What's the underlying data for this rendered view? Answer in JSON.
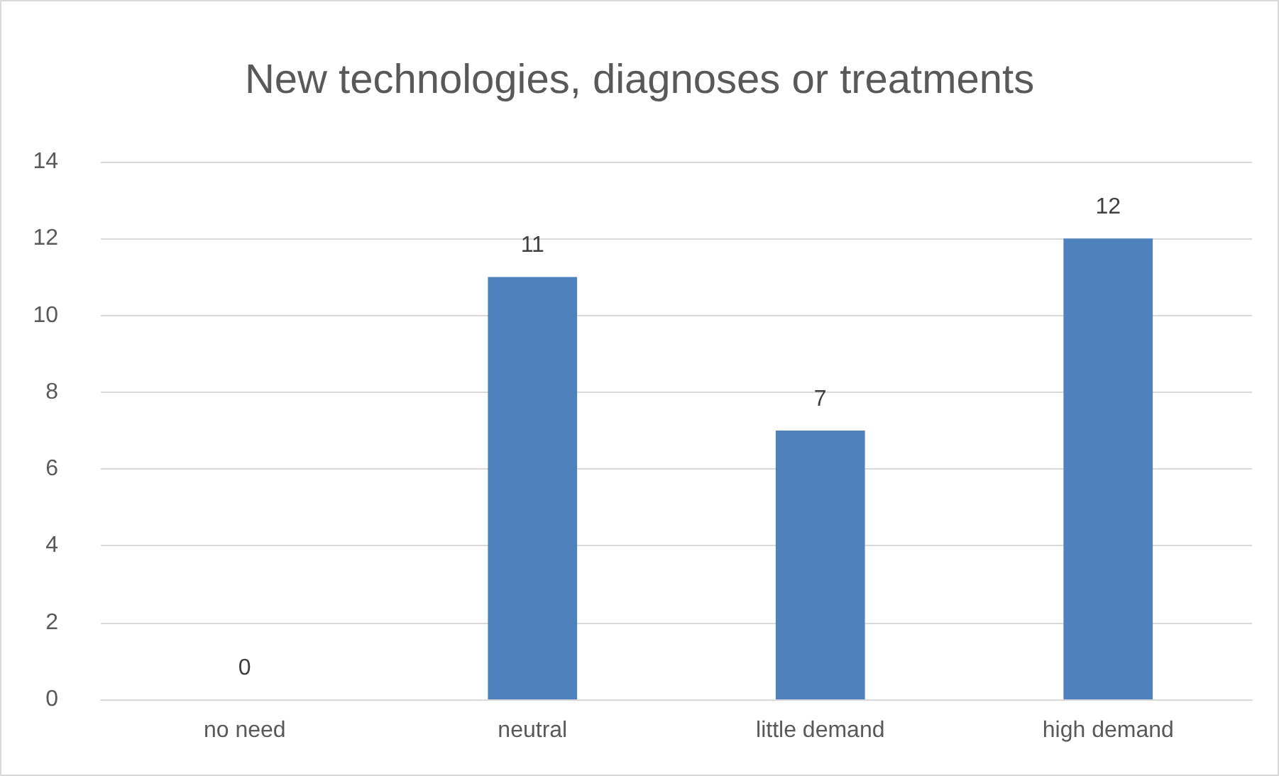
{
  "chart_data": {
    "type": "bar",
    "title": "New technologies, diagnoses or treatments",
    "categories": [
      "no need",
      "neutral",
      "little demand",
      "high demand"
    ],
    "values": [
      0,
      11,
      7,
      12
    ],
    "color": "#4f81bd",
    "ylim": [
      0,
      14
    ],
    "yticks": [
      0,
      2,
      4,
      6,
      8,
      10,
      12,
      14
    ],
    "grid": "y",
    "data_labels": true
  }
}
